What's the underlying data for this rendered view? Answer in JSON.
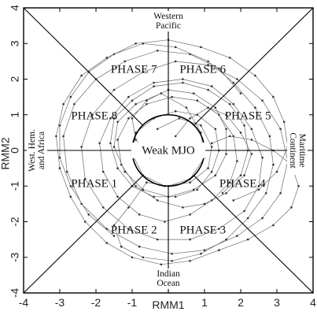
{
  "chart_data": {
    "type": "scatter",
    "title": "",
    "xlabel": "RMM1",
    "ylabel": "RMM2",
    "xlim": [
      -4,
      4
    ],
    "ylim": [
      -4,
      4
    ],
    "grid": false,
    "x_ticks": [
      "-4",
      "-3",
      "-2",
      "-1",
      "",
      "1",
      "2",
      "3",
      "4"
    ],
    "y_ticks": [
      "-4",
      "-3",
      "-2",
      "-1",
      "0",
      "1",
      "2",
      "3",
      "4"
    ],
    "x_tick_values": [
      -4,
      -3,
      -2,
      -1,
      0,
      1,
      2,
      3,
      4
    ],
    "y_tick_values": [
      -4,
      -3,
      -2,
      -1,
      0,
      1,
      2,
      3,
      4
    ],
    "weak_circle_radius": 1,
    "center_label": "Weak MJO",
    "phases": [
      {
        "label": "PHASE 1",
        "x": -2.05,
        "y": -0.95
      },
      {
        "label": "PHASE 2",
        "x": -0.95,
        "y": -2.25
      },
      {
        "label": "PHASE 3",
        "x": 0.95,
        "y": -2.25
      },
      {
        "label": "PHASE 4",
        "x": 2.05,
        "y": -0.95
      },
      {
        "label": "PHASE 5",
        "x": 2.2,
        "y": 0.95
      },
      {
        "label": "PHASE 6",
        "x": 0.95,
        "y": 2.25
      },
      {
        "label": "PHASE 7",
        "x": -0.95,
        "y": 2.25
      },
      {
        "label": "PHASE 8",
        "x": -2.05,
        "y": 0.95
      }
    ],
    "regions": {
      "top": [
        "Western",
        "Pacific"
      ],
      "bottom": [
        "Indian",
        "Ocean"
      ],
      "left": [
        "West. Hem.",
        "and Africa"
      ],
      "right": [
        "Maritime",
        "Continent"
      ]
    },
    "series": [
      {
        "points": [
          [
            0.2,
            0.4
          ],
          [
            0.6,
            0.9
          ],
          [
            1.1,
            1.2
          ],
          [
            1.6,
            1.0
          ],
          [
            2.0,
            0.5
          ],
          [
            2.3,
            -0.1
          ],
          [
            2.1,
            -0.7
          ],
          [
            1.6,
            -1.2
          ],
          [
            1.0,
            -1.5
          ],
          [
            0.4,
            -1.6
          ],
          [
            -0.3,
            -1.4
          ],
          [
            -0.9,
            -1.0
          ],
          [
            -1.3,
            -0.4
          ],
          [
            -1.4,
            0.3
          ],
          [
            -1.1,
            0.9
          ],
          [
            -0.6,
            1.3
          ],
          [
            0.1,
            1.5
          ],
          [
            0.8,
            1.4
          ],
          [
            1.4,
            1.0
          ],
          [
            1.8,
            0.4
          ],
          [
            1.9,
            -0.3
          ],
          [
            1.7,
            -0.9
          ],
          [
            1.2,
            -1.4
          ],
          [
            0.6,
            -1.8
          ],
          [
            -0.1,
            -2.0
          ],
          [
            -0.8,
            -1.8
          ],
          [
            -1.4,
            -1.3
          ],
          [
            -1.8,
            -0.6
          ],
          [
            -1.9,
            0.2
          ],
          [
            -1.6,
            0.9
          ],
          [
            -1.1,
            1.5
          ],
          [
            -0.4,
            1.9
          ],
          [
            0.4,
            2.0
          ],
          [
            1.2,
            1.8
          ],
          [
            1.8,
            1.3
          ],
          [
            2.3,
            0.6
          ],
          [
            2.6,
            -0.2
          ],
          [
            2.5,
            -1.0
          ],
          [
            2.1,
            -1.7
          ],
          [
            1.4,
            -2.2
          ],
          [
            0.6,
            -2.5
          ],
          [
            -0.3,
            -2.5
          ],
          [
            -1.1,
            -2.2
          ],
          [
            -1.8,
            -1.6
          ],
          [
            -2.3,
            -0.8
          ],
          [
            -2.4,
            0.1
          ],
          [
            -2.1,
            1.0
          ],
          [
            -1.5,
            1.7
          ],
          [
            -0.7,
            2.2
          ],
          [
            0.2,
            2.5
          ],
          [
            1.1,
            2.4
          ],
          [
            1.9,
            2.0
          ],
          [
            2.6,
            1.4
          ],
          [
            3.1,
            0.6
          ],
          [
            3.3,
            -0.3
          ],
          [
            3.1,
            -1.2
          ],
          [
            2.6,
            -1.9
          ],
          [
            1.9,
            -2.4
          ],
          [
            1.0,
            -2.8
          ],
          [
            0.1,
            -2.9
          ],
          [
            -0.8,
            -2.7
          ],
          [
            -1.7,
            -2.2
          ],
          [
            -2.4,
            -1.5
          ],
          [
            -2.8,
            -0.6
          ],
          [
            -2.9,
            0.4
          ],
          [
            -2.6,
            1.3
          ],
          [
            -2.0,
            2.0
          ],
          [
            -1.2,
            2.5
          ],
          [
            -0.3,
            2.8
          ],
          [
            0.6,
            2.7
          ],
          [
            1.4,
            2.3
          ],
          [
            2.0,
            1.6
          ]
        ]
      },
      {
        "points": [
          [
            -0.5,
            -0.2
          ],
          [
            -0.9,
            0.3
          ],
          [
            -1.0,
            0.9
          ],
          [
            -0.6,
            1.4
          ],
          [
            0.0,
            1.7
          ],
          [
            0.7,
            1.6
          ],
          [
            1.3,
            1.2
          ],
          [
            1.6,
            0.6
          ],
          [
            1.6,
            -0.1
          ],
          [
            1.3,
            -0.7
          ],
          [
            0.7,
            -1.1
          ],
          [
            0.0,
            -1.3
          ],
          [
            -0.7,
            -1.1
          ],
          [
            -1.2,
            -0.6
          ],
          [
            -1.5,
            0.1
          ],
          [
            -1.4,
            0.8
          ],
          [
            -0.9,
            1.3
          ],
          [
            -0.2,
            1.6
          ],
          [
            0.5,
            1.2
          ],
          [
            0.9,
            0.5
          ],
          [
            1.0,
            -0.2
          ],
          [
            0.6,
            -0.8
          ],
          [
            0.0,
            -1.0
          ],
          [
            -0.6,
            -0.9
          ],
          [
            -1.1,
            -1.6
          ],
          [
            -1.5,
            -2.1
          ],
          [
            -1.3,
            -2.7
          ],
          [
            -0.7,
            -3.0
          ],
          [
            0.1,
            -3.1
          ],
          [
            0.9,
            -2.9
          ],
          [
            1.6,
            -2.5
          ],
          [
            2.2,
            -1.9
          ],
          [
            2.7,
            -1.2
          ],
          [
            2.9,
            -0.4
          ],
          [
            2.8,
            0.4
          ],
          [
            2.4,
            1.2
          ],
          [
            1.8,
            1.9
          ],
          [
            1.1,
            2.5
          ],
          [
            0.2,
            2.9
          ],
          [
            -0.7,
            3.0
          ],
          [
            -1.5,
            2.7
          ],
          [
            -2.2,
            2.2
          ],
          [
            -2.7,
            1.5
          ],
          [
            -3.0,
            0.7
          ],
          [
            -3.0,
            -0.2
          ],
          [
            -2.7,
            -1.0
          ],
          [
            -2.2,
            -1.8
          ],
          [
            -1.5,
            -2.4
          ]
        ]
      },
      {
        "points": [
          [
            1.2,
            0.2
          ],
          [
            1.7,
            0.4
          ],
          [
            2.3,
            0.3
          ],
          [
            2.9,
            0.0
          ],
          [
            3.4,
            -0.4
          ],
          [
            3.6,
            -1.0
          ],
          [
            3.4,
            -1.6
          ],
          [
            2.9,
            -2.1
          ],
          [
            2.2,
            -2.5
          ],
          [
            1.4,
            -2.8
          ],
          [
            0.6,
            -3.1
          ],
          [
            -0.2,
            -3.2
          ],
          [
            -1.0,
            -3.0
          ],
          [
            -1.7,
            -2.6
          ],
          [
            -2.3,
            -2.0
          ],
          [
            -2.7,
            -1.3
          ],
          [
            -3.0,
            -0.5
          ],
          [
            -3.1,
            0.4
          ],
          [
            -2.9,
            1.3
          ],
          [
            -2.4,
            2.1
          ],
          [
            -1.7,
            2.6
          ],
          [
            -0.9,
            3.0
          ],
          [
            0.0,
            3.1
          ],
          [
            0.9,
            2.9
          ],
          [
            1.7,
            2.6
          ],
          [
            2.4,
            2.1
          ],
          [
            2.9,
            1.5
          ],
          [
            3.2,
            0.8
          ],
          [
            3.3,
            0.1
          ],
          [
            3.0,
            -0.6
          ],
          [
            2.5,
            -1.1
          ],
          [
            1.8,
            -1.4
          ]
        ]
      },
      {
        "points": [
          [
            -0.3,
            0.6
          ],
          [
            0.3,
            0.9
          ],
          [
            0.9,
            0.7
          ],
          [
            1.2,
            0.1
          ],
          [
            1.1,
            -0.5
          ],
          [
            0.6,
            -0.9
          ],
          [
            -0.1,
            -1.0
          ],
          [
            -0.7,
            -0.7
          ],
          [
            -1.0,
            -0.1
          ],
          [
            -0.9,
            0.5
          ],
          [
            -0.4,
            0.9
          ],
          [
            0.2,
            1.1
          ],
          [
            0.8,
            1.0
          ],
          [
            1.3,
            0.6
          ],
          [
            1.4,
            0.0
          ],
          [
            1.2,
            -0.6
          ],
          [
            0.8,
            -1.1
          ],
          [
            0.2,
            -1.3
          ],
          [
            -0.4,
            -1.3
          ],
          [
            -1.0,
            -1.0
          ],
          [
            -1.4,
            -0.5
          ],
          [
            -1.6,
            0.2
          ],
          [
            -1.5,
            0.9
          ],
          [
            -1.0,
            1.4
          ],
          [
            -0.4,
            1.8
          ],
          [
            0.4,
            1.9
          ],
          [
            1.1,
            1.7
          ],
          [
            1.7,
            1.3
          ],
          [
            2.1,
            0.7
          ],
          [
            2.2,
            0.0
          ],
          [
            2.0,
            -0.7
          ],
          [
            1.5,
            -1.2
          ]
        ]
      }
    ]
  }
}
